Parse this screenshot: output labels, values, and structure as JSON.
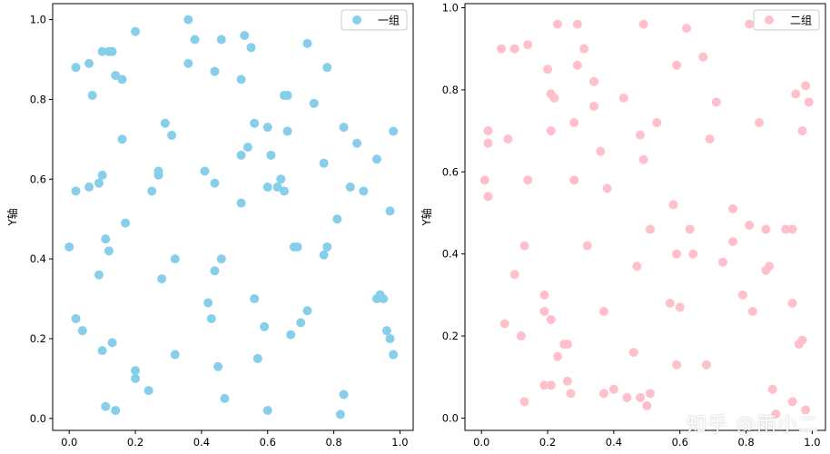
{
  "watermark": "知乎 @雨小二",
  "chart_data": [
    {
      "type": "scatter",
      "ylabel": "Y轴",
      "xlim": [
        -0.05,
        1.04
      ],
      "ylim": [
        -0.03,
        1.04
      ],
      "xticks": [
        0.0,
        0.2,
        0.4,
        0.6,
        0.8,
        1.0
      ],
      "xtick_labels": [
        "0.0",
        "0.2",
        "0.4",
        "0.6",
        "0.8",
        "1.0"
      ],
      "yticks": [
        0.0,
        0.2,
        0.4,
        0.6,
        0.8,
        1.0
      ],
      "ytick_labels": [
        "0.0",
        "0.2",
        "0.4",
        "0.6",
        "0.8",
        "1.0"
      ],
      "legend": "top-right",
      "grid": false,
      "series": [
        {
          "name": "一组",
          "color": "#87CEEB",
          "x": [
            0.36,
            0.2,
            0.46,
            0.53,
            0.55,
            0.72,
            0.02,
            0.06,
            0.12,
            0.13,
            0.38,
            0.14,
            0.44,
            0.1,
            0.16,
            0.36,
            0.07,
            0.78,
            0.52,
            0.65,
            0.66,
            0.74,
            0.29,
            0.31,
            0.56,
            0.6,
            0.16,
            0.66,
            0.83,
            0.87,
            0.98,
            0.52,
            0.54,
            0.61,
            0.93,
            0.27,
            0.27,
            0.41,
            0.64,
            0.1,
            0.09,
            0.02,
            0.06,
            0.77,
            0.44,
            0.6,
            0.63,
            0.65,
            0.85,
            0.89,
            0.17,
            0.52,
            0.25,
            0.97,
            0.81,
            0.11,
            0.12,
            0.0,
            0.78,
            0.69,
            0.68,
            0.77,
            0.09,
            0.32,
            0.46,
            0.44,
            0.28,
            0.56,
            0.93,
            0.94,
            0.95,
            0.42,
            0.72,
            0.43,
            0.7,
            0.02,
            0.04,
            0.59,
            0.96,
            0.67,
            0.13,
            0.1,
            0.97,
            0.32,
            0.98,
            0.57,
            0.45,
            0.2,
            0.2,
            0.24,
            0.11,
            0.14,
            0.6,
            0.47,
            0.82,
            0.83
          ],
          "y": [
            1.0,
            0.97,
            0.95,
            0.96,
            0.93,
            0.94,
            0.88,
            0.89,
            0.92,
            0.92,
            0.95,
            0.86,
            0.87,
            0.92,
            0.85,
            0.89,
            0.81,
            0.88,
            0.85,
            0.81,
            0.81,
            0.79,
            0.74,
            0.71,
            0.74,
            0.73,
            0.7,
            0.72,
            0.73,
            0.69,
            0.72,
            0.66,
            0.68,
            0.66,
            0.65,
            0.62,
            0.61,
            0.62,
            0.6,
            0.61,
            0.59,
            0.57,
            0.58,
            0.64,
            0.59,
            0.58,
            0.58,
            0.57,
            0.58,
            0.57,
            0.49,
            0.54,
            0.57,
            0.52,
            0.5,
            0.45,
            0.42,
            0.43,
            0.43,
            0.43,
            0.43,
            0.41,
            0.36,
            0.4,
            0.4,
            0.37,
            0.35,
            0.3,
            0.3,
            0.31,
            0.3,
            0.29,
            0.27,
            0.25,
            0.24,
            0.25,
            0.22,
            0.23,
            0.22,
            0.21,
            0.19,
            0.17,
            0.2,
            0.16,
            0.16,
            0.15,
            0.13,
            0.12,
            0.1,
            0.07,
            0.03,
            0.02,
            0.02,
            0.05,
            0.01,
            0.06
          ]
        }
      ]
    },
    {
      "type": "scatter",
      "ylabel": "Y轴",
      "xlim": [
        -0.05,
        1.04
      ],
      "ylim": [
        -0.03,
        1.01
      ],
      "xticks": [
        0.0,
        0.2,
        0.4,
        0.6,
        0.8,
        1.0
      ],
      "xtick_labels": [
        "0.0",
        "0.2",
        "0.4",
        "0.6",
        "0.8",
        "1.0"
      ],
      "yticks": [
        0.0,
        0.2,
        0.4,
        0.6,
        0.8,
        1.0
      ],
      "ytick_labels": [
        "0.0",
        "0.2",
        "0.4",
        "0.6",
        "0.8",
        "1.0"
      ],
      "legend": "top-right",
      "grid": false,
      "series": [
        {
          "name": "二组",
          "color": "#FFC0CB",
          "x": [
            0.23,
            0.29,
            0.49,
            0.62,
            0.81,
            0.06,
            0.1,
            0.14,
            0.31,
            0.2,
            0.29,
            0.22,
            0.21,
            0.34,
            0.43,
            0.59,
            0.67,
            0.71,
            0.98,
            0.95,
            0.99,
            0.34,
            0.53,
            0.02,
            0.02,
            0.08,
            0.21,
            0.28,
            0.48,
            0.69,
            0.84,
            0.97,
            0.49,
            0.36,
            0.01,
            0.14,
            0.28,
            0.38,
            0.02,
            0.58,
            0.51,
            0.63,
            0.76,
            0.94,
            0.86,
            0.76,
            0.73,
            0.92,
            0.81,
            0.13,
            0.32,
            0.47,
            0.59,
            0.64,
            0.86,
            0.87,
            0.1,
            0.19,
            0.57,
            0.6,
            0.37,
            0.19,
            0.21,
            0.94,
            0.79,
            0.82,
            0.07,
            0.12,
            0.26,
            0.23,
            0.25,
            0.46,
            0.68,
            0.97,
            0.96,
            0.59,
            0.21,
            0.48,
            0.88,
            0.26,
            0.37,
            0.4,
            0.19,
            0.27,
            0.44,
            0.5,
            0.51,
            0.13,
            0.94,
            0.89,
            0.98
          ],
          "y": [
            0.96,
            0.96,
            0.96,
            0.95,
            0.96,
            0.9,
            0.9,
            0.91,
            0.9,
            0.85,
            0.86,
            0.78,
            0.79,
            0.82,
            0.78,
            0.86,
            0.88,
            0.77,
            0.81,
            0.79,
            0.77,
            0.76,
            0.72,
            0.7,
            0.67,
            0.68,
            0.7,
            0.72,
            0.69,
            0.68,
            0.72,
            0.7,
            0.63,
            0.65,
            0.58,
            0.58,
            0.58,
            0.56,
            0.54,
            0.52,
            0.46,
            0.46,
            0.51,
            0.46,
            0.46,
            0.43,
            0.38,
            0.46,
            0.47,
            0.42,
            0.42,
            0.37,
            0.4,
            0.4,
            0.36,
            0.37,
            0.35,
            0.3,
            0.28,
            0.27,
            0.26,
            0.26,
            0.24,
            0.28,
            0.3,
            0.26,
            0.23,
            0.2,
            0.18,
            0.15,
            0.18,
            0.16,
            0.13,
            0.19,
            0.18,
            0.13,
            0.08,
            0.05,
            0.07,
            0.09,
            0.06,
            0.07,
            0.08,
            0.06,
            0.05,
            0.03,
            0.06,
            0.04,
            0.04,
            0.01,
            0.02
          ]
        }
      ]
    }
  ]
}
